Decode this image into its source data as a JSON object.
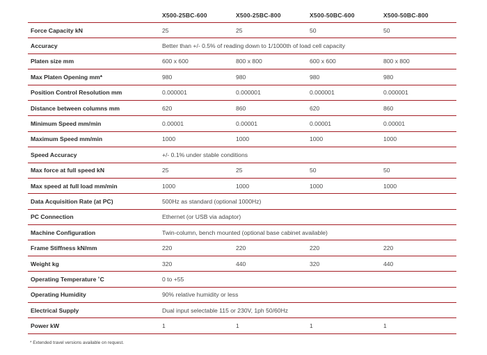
{
  "table": {
    "headers": [
      "",
      "X500-25BC-600",
      "X500-25BC-800",
      "X500-50BC-600",
      "X500-50BC-800"
    ],
    "rows": [
      {
        "label": "Force Capacity kN",
        "values": [
          "25",
          "25",
          "50",
          "50"
        ]
      },
      {
        "label": "Accuracy",
        "span": "Better than +/- 0.5% of reading down to 1/1000th of load cell capacity"
      },
      {
        "label": "Platen size mm",
        "values": [
          "600 x 600",
          "800 x 800",
          "600 x 600",
          "800 x 800"
        ]
      },
      {
        "label": "Max Platen Opening mm*",
        "values": [
          "980",
          "980",
          "980",
          "980"
        ]
      },
      {
        "label": "Position Control Resolution mm",
        "values": [
          "0.000001",
          "0.000001",
          "0.000001",
          "0.000001"
        ]
      },
      {
        "label": "Distance between columns mm",
        "values": [
          "620",
          "860",
          "620",
          "860"
        ]
      },
      {
        "label": "Minimum Speed mm/min",
        "values": [
          "0.00001",
          "0.00001",
          "0.00001",
          "0.00001"
        ]
      },
      {
        "label": "Maximum Speed mm/min",
        "values": [
          "1000",
          "1000",
          "1000",
          "1000"
        ]
      },
      {
        "label": "Speed Accuracy",
        "span": "+/- 0.1% under stable conditions"
      },
      {
        "label": "Max force at full speed kN",
        "values": [
          "25",
          "25",
          "50",
          "50"
        ]
      },
      {
        "label": "Max speed at full load mm/min",
        "values": [
          "1000",
          "1000",
          "1000",
          "1000"
        ]
      },
      {
        "label": "Data Acquisition Rate (at PC)",
        "span": "500Hz as standard (optional 1000Hz)"
      },
      {
        "label": "PC Connection",
        "span": "Ethernet (or USB via adaptor)"
      },
      {
        "label": "Machine Configuration",
        "span": "Twin-column, bench mounted (optional base cabinet available)"
      },
      {
        "label": "Frame Stiffness kN/mm",
        "values": [
          "220",
          "220",
          "220",
          "220"
        ]
      },
      {
        "label": "Weight kg",
        "values": [
          "320",
          "440",
          "320",
          "440"
        ]
      },
      {
        "label": "Operating Temperature ˚C",
        "span": "0 to +55"
      },
      {
        "label": "Operating Humidity",
        "span": "90% relative humidity or less"
      },
      {
        "label": "Electrical Supply",
        "span": "Dual input selectable 115 or 230V, 1ph 50/60Hz"
      },
      {
        "label": "Power kW",
        "values": [
          "1",
          "1",
          "1",
          "1"
        ]
      }
    ]
  },
  "footnote": "* Extended travel versions available on request.",
  "colors": {
    "rule": "#a31c23",
    "text": "#3a3a3a"
  }
}
